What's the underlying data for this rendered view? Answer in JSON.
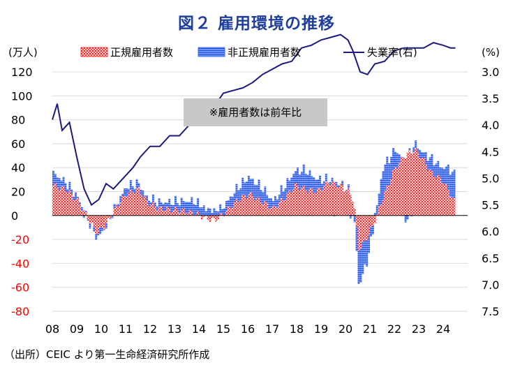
{
  "title": "図２ 雇用環境の推移",
  "source": "（出所）CEIC より第一生命経済研究所作成",
  "colors": {
    "regular": "#ff2020",
    "nonregular": "#2f5fdf",
    "unemployment": "#1a1a80",
    "title": "#1f3f9f",
    "neg_tick": "#ff0000",
    "annotation_bg": "#c8c8c8"
  },
  "chart_data": {
    "type": "bar",
    "stacked": true,
    "title": "図２ 雇用環境の推移",
    "left_axis": {
      "unit": "(万人)",
      "min": -80,
      "max": 120,
      "ticks": [
        {
          "v": 120,
          "label": "120"
        },
        {
          "v": 100,
          "label": "100"
        },
        {
          "v": 80,
          "label": "80"
        },
        {
          "v": 60,
          "label": "60"
        },
        {
          "v": 40,
          "label": "40"
        },
        {
          "v": 20,
          "label": "20"
        },
        {
          "v": 0,
          "label": "0"
        },
        {
          "v": -20,
          "label": "-20"
        },
        {
          "v": -40,
          "label": "-40"
        },
        {
          "v": -60,
          "label": "-60"
        },
        {
          "v": -80,
          "label": "-80"
        }
      ]
    },
    "right_axis": {
      "unit": "(%)",
      "min": 3.0,
      "max": 7.5,
      "inverted": true,
      "ticks": [
        {
          "v": 3.0,
          "label": "3.0"
        },
        {
          "v": 3.5,
          "label": "3.5"
        },
        {
          "v": 4.0,
          "label": "4.0"
        },
        {
          "v": 4.5,
          "label": "4.5"
        },
        {
          "v": 5.0,
          "label": "5.0"
        },
        {
          "v": 5.5,
          "label": "5.5"
        },
        {
          "v": 6.0,
          "label": "6.0"
        },
        {
          "v": 6.5,
          "label": "6.5"
        },
        {
          "v": 7.0,
          "label": "7.0"
        },
        {
          "v": 7.5,
          "label": "7.5"
        }
      ]
    },
    "x_labels": [
      "08",
      "09",
      "10",
      "11",
      "12",
      "13",
      "14",
      "15",
      "16",
      "17",
      "18",
      "19",
      "20",
      "21",
      "22",
      "23",
      "24"
    ],
    "x_start_year": 2008,
    "annotation": "※雇用者数は前年比",
    "legend": [
      "正規雇用者数",
      "非正規雇用者数",
      "失業率(右)"
    ],
    "legend_position": "top",
    "series": [
      {
        "name": "正規雇用者数",
        "kind": "bar",
        "anchors": [
          [
            2008.0,
            25
          ],
          [
            2008.5,
            22
          ],
          [
            2009.0,
            12
          ],
          [
            2009.5,
            -5
          ],
          [
            2009.8,
            -15
          ],
          [
            2010.2,
            -6
          ],
          [
            2010.6,
            8
          ],
          [
            2011.0,
            18
          ],
          [
            2011.5,
            22
          ],
          [
            2011.8,
            12
          ],
          [
            2012.3,
            6
          ],
          [
            2012.8,
            5
          ],
          [
            2013.3,
            4
          ],
          [
            2013.8,
            2
          ],
          [
            2014.2,
            -2
          ],
          [
            2014.6,
            -4
          ],
          [
            2015.0,
            2
          ],
          [
            2015.5,
            12
          ],
          [
            2016.0,
            18
          ],
          [
            2016.5,
            12
          ],
          [
            2017.0,
            6
          ],
          [
            2017.5,
            15
          ],
          [
            2017.9,
            25
          ],
          [
            2018.3,
            22
          ],
          [
            2018.8,
            20
          ],
          [
            2019.3,
            28
          ],
          [
            2019.8,
            24
          ],
          [
            2020.1,
            20
          ],
          [
            2020.3,
            12
          ],
          [
            2020.5,
            -28
          ],
          [
            2020.8,
            -20
          ],
          [
            2021.1,
            -8
          ],
          [
            2021.5,
            15
          ],
          [
            2022.0,
            40
          ],
          [
            2022.4,
            50
          ],
          [
            2022.8,
            55
          ],
          [
            2023.1,
            48
          ],
          [
            2023.5,
            35
          ],
          [
            2023.9,
            30
          ],
          [
            2024.2,
            20
          ],
          [
            2024.4,
            12
          ]
        ]
      },
      {
        "name": "非正規雇用者数",
        "kind": "bar",
        "anchors": [
          [
            2008.0,
            10
          ],
          [
            2008.5,
            6
          ],
          [
            2009.0,
            3
          ],
          [
            2009.5,
            -2
          ],
          [
            2009.8,
            -4
          ],
          [
            2010.2,
            -2
          ],
          [
            2010.6,
            2
          ],
          [
            2011.0,
            6
          ],
          [
            2011.5,
            5
          ],
          [
            2011.8,
            3
          ],
          [
            2012.3,
            5
          ],
          [
            2012.8,
            6
          ],
          [
            2013.3,
            8
          ],
          [
            2013.8,
            10
          ],
          [
            2014.2,
            6
          ],
          [
            2014.6,
            4
          ],
          [
            2015.0,
            6
          ],
          [
            2015.5,
            10
          ],
          [
            2016.0,
            14
          ],
          [
            2016.5,
            12
          ],
          [
            2017.0,
            6
          ],
          [
            2017.5,
            10
          ],
          [
            2017.9,
            12
          ],
          [
            2018.3,
            16
          ],
          [
            2018.8,
            10
          ],
          [
            2019.3,
            2
          ],
          [
            2019.8,
            2
          ],
          [
            2020.1,
            1
          ],
          [
            2020.3,
            -2
          ],
          [
            2020.5,
            -30
          ],
          [
            2020.8,
            -22
          ],
          [
            2021.1,
            -4
          ],
          [
            2021.5,
            25
          ],
          [
            2022.0,
            15
          ],
          [
            2022.4,
            -5
          ],
          [
            2022.8,
            5
          ],
          [
            2023.1,
            5
          ],
          [
            2023.5,
            12
          ],
          [
            2023.9,
            10
          ],
          [
            2024.2,
            20
          ],
          [
            2024.4,
            22
          ]
        ]
      },
      {
        "name": "失業率(右)",
        "kind": "line",
        "axis": "right",
        "anchors": [
          [
            2008.0,
            3.9
          ],
          [
            2008.2,
            3.6
          ],
          [
            2008.4,
            4.1
          ],
          [
            2008.7,
            3.95
          ],
          [
            2009.0,
            4.6
          ],
          [
            2009.3,
            5.2
          ],
          [
            2009.6,
            5.5
          ],
          [
            2009.9,
            5.4
          ],
          [
            2010.2,
            5.1
          ],
          [
            2010.5,
            5.2
          ],
          [
            2010.9,
            5.0
          ],
          [
            2011.3,
            4.8
          ],
          [
            2011.6,
            4.6
          ],
          [
            2012.0,
            4.4
          ],
          [
            2012.4,
            4.4
          ],
          [
            2012.8,
            4.2
          ],
          [
            2013.2,
            4.2
          ],
          [
            2013.6,
            4.0
          ],
          [
            2014.0,
            3.7
          ],
          [
            2014.3,
            3.65
          ],
          [
            2014.7,
            3.6
          ],
          [
            2015.0,
            3.4
          ],
          [
            2015.4,
            3.35
          ],
          [
            2015.8,
            3.3
          ],
          [
            2016.2,
            3.2
          ],
          [
            2016.6,
            3.05
          ],
          [
            2017.0,
            2.95
          ],
          [
            2017.4,
            2.85
          ],
          [
            2017.8,
            2.8
          ],
          [
            2018.2,
            2.55
          ],
          [
            2018.6,
            2.5
          ],
          [
            2019.0,
            2.4
          ],
          [
            2019.4,
            2.35
          ],
          [
            2019.8,
            2.3
          ],
          [
            2020.1,
            2.4
          ],
          [
            2020.3,
            2.6
          ],
          [
            2020.6,
            3.0
          ],
          [
            2020.9,
            3.05
          ],
          [
            2021.2,
            2.85
          ],
          [
            2021.6,
            2.8
          ],
          [
            2022.0,
            2.6
          ],
          [
            2022.4,
            2.55
          ],
          [
            2022.8,
            2.55
          ],
          [
            2023.2,
            2.55
          ],
          [
            2023.6,
            2.45
          ],
          [
            2024.0,
            2.5
          ],
          [
            2024.3,
            2.55
          ],
          [
            2024.5,
            2.55
          ]
        ]
      }
    ]
  }
}
